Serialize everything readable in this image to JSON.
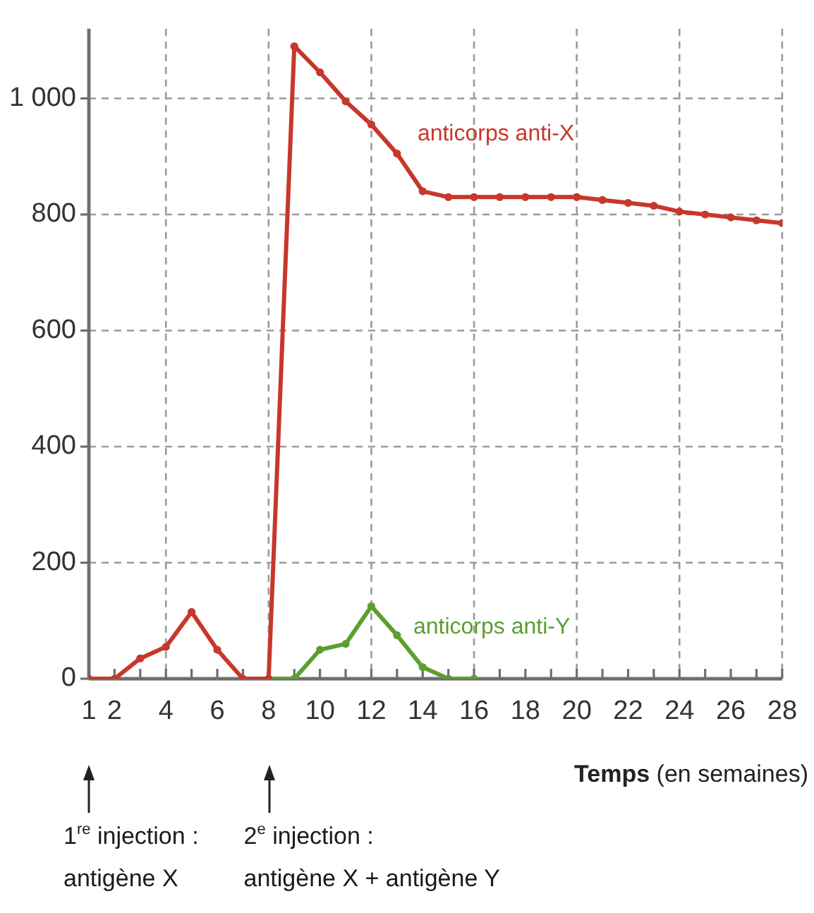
{
  "chart_data": {
    "type": "line",
    "xlabel": "Temps (en semaines)",
    "x": [
      1,
      2,
      3,
      4,
      5,
      6,
      7,
      8,
      9,
      10,
      11,
      12,
      13,
      14,
      15,
      16,
      17,
      18,
      19,
      20,
      21,
      22,
      23,
      24,
      25,
      26,
      27,
      28
    ],
    "series": [
      {
        "name": "anticorps anti-X",
        "color": "#c8372b",
        "values": [
          0,
          0,
          35,
          55,
          115,
          50,
          0,
          0,
          1090,
          1045,
          995,
          955,
          905,
          840,
          830,
          830,
          830,
          830,
          830,
          830,
          825,
          820,
          815,
          805,
          800,
          795,
          790,
          785
        ]
      },
      {
        "name": "anticorps anti-Y",
        "color": "#5d9e32",
        "x": [
          8,
          9,
          10,
          11,
          12,
          13,
          14,
          15,
          16
        ],
        "values": [
          0,
          0,
          50,
          60,
          125,
          75,
          20,
          0,
          0
        ]
      }
    ],
    "xlim": [
      1,
      28
    ],
    "xticks": [
      1,
      2,
      {
        "value": 3,
        "label": null
      },
      4,
      {
        "value": 5,
        "label": null
      },
      6,
      {
        "value": 7,
        "label": null
      },
      8,
      {
        "value": 9,
        "label": null
      },
      10,
      {
        "value": 11,
        "label": null
      },
      12,
      {
        "value": 13,
        "label": null
      },
      14,
      {
        "value": 15,
        "label": null
      },
      16,
      {
        "value": 17,
        "label": null
      },
      18,
      {
        "value": 19,
        "label": null
      },
      20,
      {
        "value": 21,
        "label": null
      },
      22,
      {
        "value": 23,
        "label": null
      },
      24,
      {
        "value": 25,
        "label": null
      },
      26,
      {
        "value": 27,
        "label": null
      },
      28
    ],
    "ylim": [
      0,
      1120
    ],
    "yticks": [
      0,
      200,
      400,
      600,
      800,
      {
        "value": 1000,
        "label": "1 000"
      }
    ],
    "grid": true,
    "legend": false,
    "marker": "circle",
    "line_style": "solid",
    "annotations": [
      "1$^{re}$ injection :\nantigène X",
      "2$^{e}$ injection :\nantigène X + antigène Y"
    ]
  }
}
